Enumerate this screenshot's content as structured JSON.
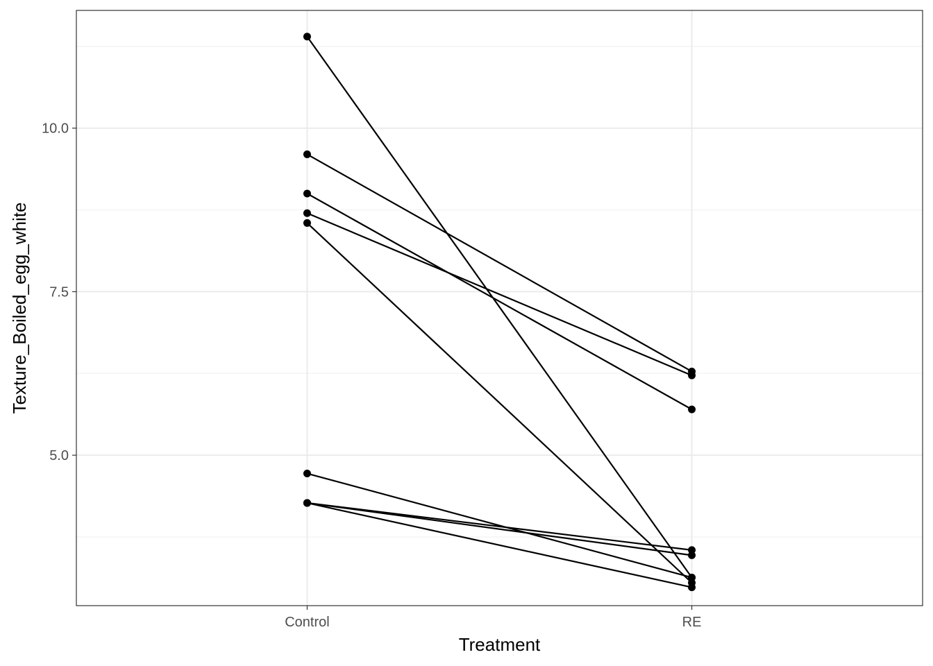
{
  "chart_data": {
    "type": "line",
    "subtype": "paired-slope",
    "xlabel": "Treatment",
    "ylabel": "Texture_Boiled_egg_white",
    "categories": [
      "Control",
      "RE"
    ],
    "ylim": [
      2.7,
      11.8
    ],
    "yticks": [
      5.0,
      7.5,
      10.0
    ],
    "ytick_labels": [
      "5.0",
      "7.5",
      "10.0"
    ],
    "y_minor_ticks": [
      3.75,
      6.25,
      8.75,
      11.25
    ],
    "grid": true,
    "legend": "none",
    "series": [
      {
        "values": [
          11.4,
          3.13
        ]
      },
      {
        "values": [
          9.6,
          6.28
        ]
      },
      {
        "values": [
          9.0,
          5.7
        ]
      },
      {
        "values": [
          8.7,
          6.22
        ]
      },
      {
        "values": [
          8.55,
          3.05
        ]
      },
      {
        "values": [
          4.72,
          3.13
        ]
      },
      {
        "values": [
          4.27,
          3.55
        ]
      },
      {
        "values": [
          4.27,
          2.98
        ]
      },
      {
        "values": [
          4.27,
          3.47
        ]
      }
    ],
    "colors": {
      "line": "#000000",
      "point": "#000000",
      "grid_major": "#ebebeb",
      "grid_minor": "#f2f2f2",
      "panel_border": "#333333",
      "tick_label": "#4d4d4d"
    }
  }
}
